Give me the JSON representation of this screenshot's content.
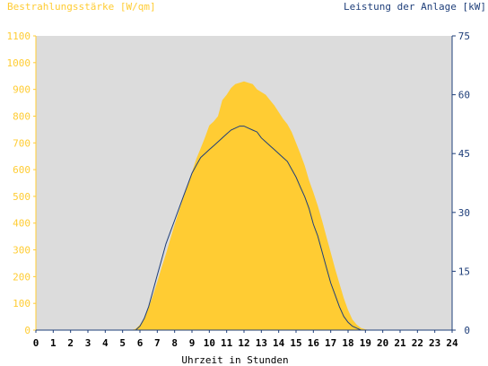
{
  "chart_data": {
    "type": "area",
    "title_left": "Bestrahlungsstärke [W/qm]",
    "title_right": "Leistung der Anlage [kW]",
    "xlabel": "Uhrzeit in Stunden",
    "xlim": [
      0,
      24
    ],
    "x_ticks": [
      "0",
      "1",
      "2",
      "3",
      "4",
      "5",
      "6",
      "7",
      "8",
      "9",
      "10",
      "11",
      "12",
      "13",
      "14",
      "15",
      "16",
      "17",
      "18",
      "19",
      "20",
      "21",
      "22",
      "23",
      "24"
    ],
    "y_left": {
      "lim": [
        0,
        1100
      ],
      "ticks": [
        "0",
        "100",
        "200",
        "300",
        "400",
        "500",
        "600",
        "700",
        "800",
        "900",
        "1000",
        "1100"
      ]
    },
    "y_right": {
      "lim": [
        0,
        75
      ],
      "ticks": [
        "0",
        "15",
        "30",
        "45",
        "60",
        "75"
      ]
    },
    "series": [
      {
        "name": "Bestrahlungsstärke [W/qm]",
        "axis": "left",
        "kind": "area",
        "color": "#ffcc33",
        "x": [
          0,
          5.5,
          5.75,
          6,
          6.25,
          6.5,
          6.75,
          7,
          7.25,
          7.5,
          7.75,
          8,
          8.25,
          8.5,
          8.75,
          9,
          9.25,
          9.5,
          9.75,
          10,
          10.25,
          10.5,
          10.75,
          11,
          11.25,
          11.5,
          11.75,
          12,
          12.25,
          12.5,
          12.75,
          13,
          13.25,
          13.5,
          13.75,
          14,
          14.25,
          14.5,
          14.75,
          15,
          15.25,
          15.5,
          15.75,
          16,
          16.25,
          16.5,
          16.75,
          17,
          17.25,
          17.5,
          17.75,
          18,
          18.25,
          18.5,
          18.75,
          19,
          19.25,
          19.5,
          24
        ],
        "y": [
          0,
          0,
          5,
          20,
          45,
          85,
          130,
          180,
          235,
          285,
          340,
          395,
          445,
          495,
          545,
          590,
          640,
          680,
          720,
          765,
          780,
          800,
          860,
          880,
          905,
          920,
          925,
          930,
          925,
          920,
          900,
          890,
          880,
          860,
          840,
          815,
          790,
          770,
          740,
          700,
          660,
          615,
          560,
          515,
          465,
          410,
          350,
          290,
          230,
          175,
          120,
          75,
          40,
          20,
          8,
          3,
          0,
          0,
          0
        ]
      },
      {
        "name": "Leistung der Anlage [kW]",
        "axis": "right",
        "kind": "line",
        "color": "#1f3f7a",
        "x": [
          0,
          5.75,
          6,
          6.25,
          6.5,
          6.75,
          7,
          7.25,
          7.5,
          7.75,
          8,
          8.25,
          8.5,
          8.75,
          9,
          9.25,
          9.5,
          9.75,
          10,
          10.25,
          10.5,
          10.75,
          11,
          11.25,
          11.5,
          11.75,
          12,
          12.25,
          12.5,
          12.75,
          13,
          13.25,
          13.5,
          13.75,
          14,
          14.25,
          14.5,
          14.75,
          15,
          15.25,
          15.5,
          15.75,
          16,
          16.25,
          16.5,
          16.75,
          17,
          17.25,
          17.5,
          17.75,
          18,
          18.25,
          18.5,
          18.75,
          19,
          19.25,
          24
        ],
        "y": [
          0,
          0,
          1,
          3,
          6,
          10,
          14,
          18,
          22,
          25,
          28,
          31,
          34,
          37,
          40,
          42,
          44,
          45,
          46,
          47,
          48,
          49,
          50,
          51,
          51.5,
          52,
          52,
          51.5,
          51,
          50.5,
          49,
          48,
          47,
          46,
          45,
          44,
          43,
          41,
          39,
          36.5,
          34,
          31,
          27,
          24,
          20,
          16,
          12,
          9,
          6,
          3.5,
          2,
          1,
          0.5,
          0,
          0,
          0,
          0
        ]
      }
    ],
    "grid": false,
    "legend": "none"
  }
}
